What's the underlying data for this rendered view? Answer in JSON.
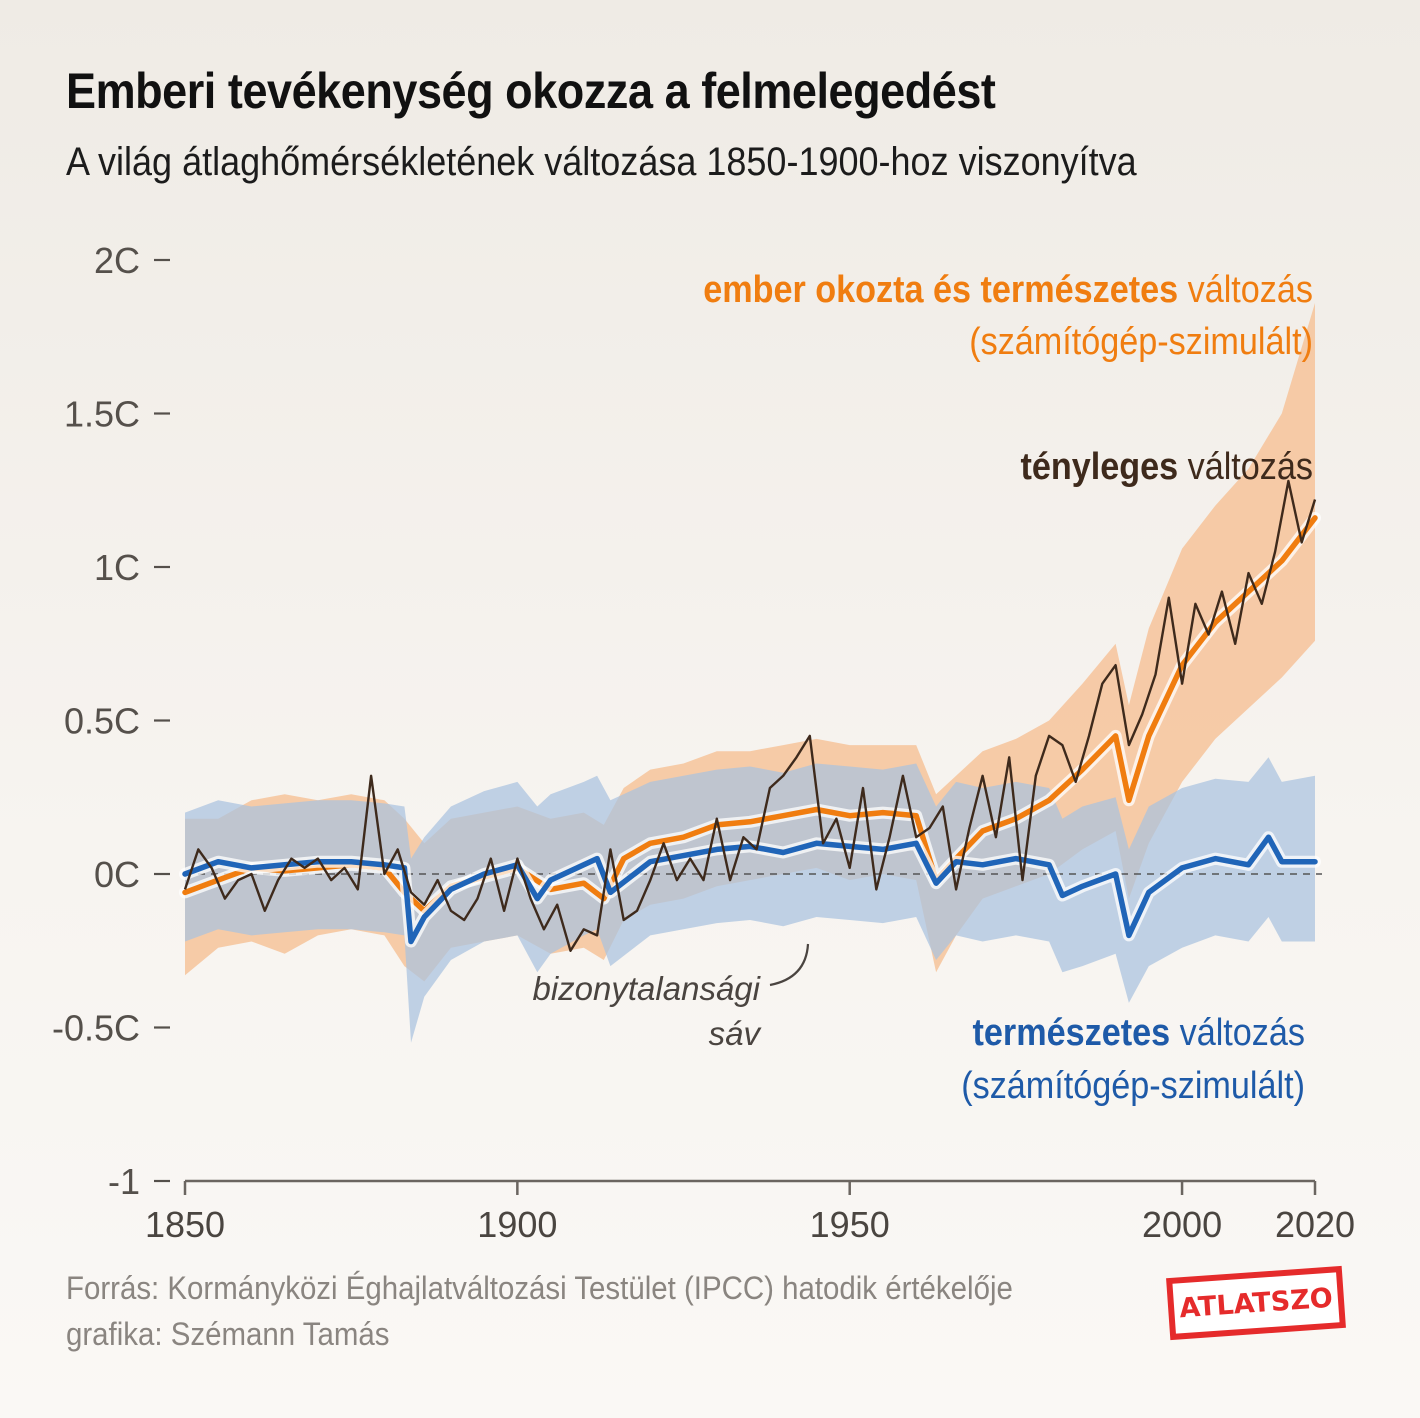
{
  "title": "Emberi tevékenység okozza a felmelegedést",
  "subtitle": "A világ átlaghőmérsékletének változása 1850-1900-hoz viszonyítva",
  "colors": {
    "human": "#f07d10",
    "human_band": "#f6c39a",
    "natural": "#2065b8",
    "natural_band": "#a9c2df",
    "observed": "#3e2a1c",
    "axis": "#6b6560",
    "logo": "#e52b2b"
  },
  "chart_data": {
    "type": "line",
    "title": "A világ átlaghőmérsékletének változása 1850-1900-hoz viszonyítva",
    "xlabel": "",
    "ylabel": "",
    "xlim": [
      1850,
      2020
    ],
    "ylim": [
      -1,
      2
    ],
    "x_ticks": [
      1850,
      1900,
      1950,
      2000,
      2020
    ],
    "x_tick_labels": [
      "1850",
      "1900",
      "1950",
      "2000",
      "2020"
    ],
    "y_ticks": [
      2,
      1.5,
      1,
      0.5,
      0,
      -0.5,
      -1
    ],
    "y_tick_labels": [
      "2C",
      "1.5C",
      "1C",
      "0.5C",
      "0C",
      "-0.5C",
      "-1"
    ],
    "series": [
      {
        "name": "ember okozta és természetes változás (számítógép-szimulált)",
        "color_key": "human",
        "x": [
          1850,
          1855,
          1860,
          1865,
          1870,
          1875,
          1880,
          1883,
          1886,
          1890,
          1895,
          1900,
          1905,
          1910,
          1913,
          1916,
          1920,
          1925,
          1930,
          1935,
          1940,
          1945,
          1950,
          1955,
          1960,
          1963,
          1966,
          1970,
          1975,
          1980,
          1985,
          1990,
          1992,
          1995,
          2000,
          2005,
          2010,
          2015,
          2020
        ],
        "values": [
          -0.06,
          -0.02,
          0.02,
          0.01,
          0.02,
          0.03,
          0.02,
          -0.06,
          -0.12,
          -0.04,
          -0.01,
          0.02,
          -0.05,
          -0.03,
          -0.08,
          0.05,
          0.1,
          0.12,
          0.16,
          0.17,
          0.19,
          0.21,
          0.19,
          0.2,
          0.19,
          -0.02,
          0.05,
          0.14,
          0.18,
          0.24,
          0.34,
          0.45,
          0.24,
          0.45,
          0.68,
          0.82,
          0.92,
          1.02,
          1.16
        ],
        "band_low": [
          -0.33,
          -0.24,
          -0.22,
          -0.26,
          -0.2,
          -0.18,
          -0.2,
          -0.3,
          -0.35,
          -0.24,
          -0.22,
          -0.2,
          -0.26,
          -0.24,
          -0.28,
          -0.15,
          -0.1,
          -0.08,
          -0.04,
          -0.02,
          0.0,
          0.02,
          -0.02,
          0.0,
          -0.02,
          -0.32,
          -0.2,
          -0.08,
          -0.04,
          0.0,
          0.08,
          0.14,
          -0.08,
          0.1,
          0.3,
          0.44,
          0.54,
          0.64,
          0.76
        ],
        "band_high": [
          0.18,
          0.18,
          0.24,
          0.26,
          0.24,
          0.26,
          0.24,
          0.18,
          0.1,
          0.18,
          0.2,
          0.22,
          0.18,
          0.2,
          0.16,
          0.28,
          0.34,
          0.36,
          0.4,
          0.4,
          0.42,
          0.44,
          0.42,
          0.42,
          0.42,
          0.26,
          0.32,
          0.4,
          0.44,
          0.5,
          0.62,
          0.75,
          0.55,
          0.8,
          1.06,
          1.2,
          1.32,
          1.5,
          1.86
        ]
      },
      {
        "name": "természetes változás (számítógép-szimulált)",
        "color_key": "natural",
        "x": [
          1850,
          1855,
          1860,
          1865,
          1870,
          1875,
          1880,
          1883,
          1884,
          1886,
          1890,
          1895,
          1900,
          1903,
          1905,
          1910,
          1912,
          1914,
          1920,
          1925,
          1930,
          1935,
          1940,
          1945,
          1950,
          1955,
          1960,
          1963,
          1966,
          1970,
          1975,
          1980,
          1982,
          1985,
          1990,
          1992,
          1995,
          2000,
          2005,
          2010,
          2013,
          2015,
          2020
        ],
        "values": [
          0.0,
          0.04,
          0.02,
          0.03,
          0.04,
          0.04,
          0.03,
          0.02,
          -0.22,
          -0.14,
          -0.05,
          0.0,
          0.03,
          -0.08,
          -0.02,
          0.03,
          0.05,
          -0.06,
          0.04,
          0.06,
          0.08,
          0.09,
          0.07,
          0.1,
          0.09,
          0.08,
          0.1,
          -0.03,
          0.04,
          0.03,
          0.05,
          0.03,
          -0.07,
          -0.04,
          0.0,
          -0.2,
          -0.06,
          0.02,
          0.05,
          0.03,
          0.12,
          0.04,
          0.04
        ],
        "band_low": [
          -0.22,
          -0.18,
          -0.2,
          -0.19,
          -0.18,
          -0.18,
          -0.19,
          -0.2,
          -0.55,
          -0.4,
          -0.28,
          -0.22,
          -0.2,
          -0.32,
          -0.26,
          -0.2,
          -0.18,
          -0.3,
          -0.2,
          -0.18,
          -0.16,
          -0.15,
          -0.17,
          -0.14,
          -0.15,
          -0.16,
          -0.14,
          -0.28,
          -0.2,
          -0.22,
          -0.2,
          -0.22,
          -0.32,
          -0.3,
          -0.26,
          -0.42,
          -0.3,
          -0.24,
          -0.2,
          -0.22,
          -0.14,
          -0.22,
          -0.22
        ],
        "band_high": [
          0.2,
          0.24,
          0.22,
          0.23,
          0.24,
          0.24,
          0.23,
          0.22,
          0.05,
          0.12,
          0.22,
          0.27,
          0.3,
          0.22,
          0.26,
          0.3,
          0.32,
          0.24,
          0.3,
          0.32,
          0.34,
          0.35,
          0.33,
          0.36,
          0.35,
          0.34,
          0.36,
          0.22,
          0.3,
          0.28,
          0.3,
          0.28,
          0.18,
          0.22,
          0.25,
          0.08,
          0.22,
          0.28,
          0.31,
          0.3,
          0.38,
          0.3,
          0.32
        ]
      },
      {
        "name": "tényleges változás",
        "color_key": "observed",
        "x": [
          1850,
          1852,
          1854,
          1856,
          1858,
          1860,
          1862,
          1864,
          1866,
          1868,
          1870,
          1872,
          1874,
          1876,
          1878,
          1880,
          1882,
          1884,
          1886,
          1888,
          1890,
          1892,
          1894,
          1896,
          1898,
          1900,
          1902,
          1904,
          1906,
          1908,
          1910,
          1912,
          1914,
          1916,
          1918,
          1920,
          1922,
          1924,
          1926,
          1928,
          1930,
          1932,
          1934,
          1936,
          1938,
          1940,
          1942,
          1944,
          1946,
          1948,
          1950,
          1952,
          1954,
          1956,
          1958,
          1960,
          1962,
          1964,
          1966,
          1968,
          1970,
          1972,
          1974,
          1976,
          1978,
          1980,
          1982,
          1984,
          1986,
          1988,
          1990,
          1992,
          1994,
          1996,
          1998,
          2000,
          2002,
          2004,
          2006,
          2008,
          2010,
          2012,
          2014,
          2016,
          2018,
          2020
        ],
        "values": [
          -0.05,
          0.08,
          0.02,
          -0.08,
          -0.02,
          0.0,
          -0.12,
          -0.02,
          0.05,
          0.02,
          0.05,
          -0.02,
          0.02,
          -0.05,
          0.32,
          0.0,
          0.08,
          -0.06,
          -0.1,
          -0.02,
          -0.12,
          -0.15,
          -0.08,
          0.05,
          -0.12,
          0.05,
          -0.08,
          -0.18,
          -0.1,
          -0.25,
          -0.18,
          -0.2,
          0.08,
          -0.15,
          -0.12,
          -0.02,
          0.1,
          -0.02,
          0.05,
          -0.02,
          0.18,
          -0.02,
          0.12,
          0.08,
          0.28,
          0.32,
          0.38,
          0.45,
          0.1,
          0.18,
          0.02,
          0.28,
          -0.05,
          0.12,
          0.32,
          0.12,
          0.15,
          0.22,
          -0.05,
          0.15,
          0.32,
          0.12,
          0.38,
          -0.02,
          0.32,
          0.45,
          0.42,
          0.3,
          0.45,
          0.62,
          0.68,
          0.42,
          0.52,
          0.65,
          0.9,
          0.62,
          0.88,
          0.78,
          0.92,
          0.75,
          0.98,
          0.88,
          1.05,
          1.28,
          1.08,
          1.22
        ]
      }
    ],
    "legend": [
      {
        "bold": "ember okozta és természetes",
        "rest": " változás",
        "line2": "(számítógép-szimulált)",
        "color_key": "human"
      },
      {
        "bold": "tényleges",
        "rest": " változás",
        "color_key": "observed"
      },
      {
        "bold": "természetes",
        "rest": " változás",
        "line2": "(számítógép-szimulált)",
        "color_key": "natural"
      }
    ],
    "annotation": {
      "line1": "bizonytalansági",
      "line2": "sáv"
    },
    "zero_line": "dashed"
  },
  "footer": {
    "source": "Forrás: Kormányközi Éghajlatváltozási Testület (IPCC) hatodik értékelője",
    "credit": "grafika: Szémann Tamás"
  },
  "logo_text": "ATLATSZO"
}
